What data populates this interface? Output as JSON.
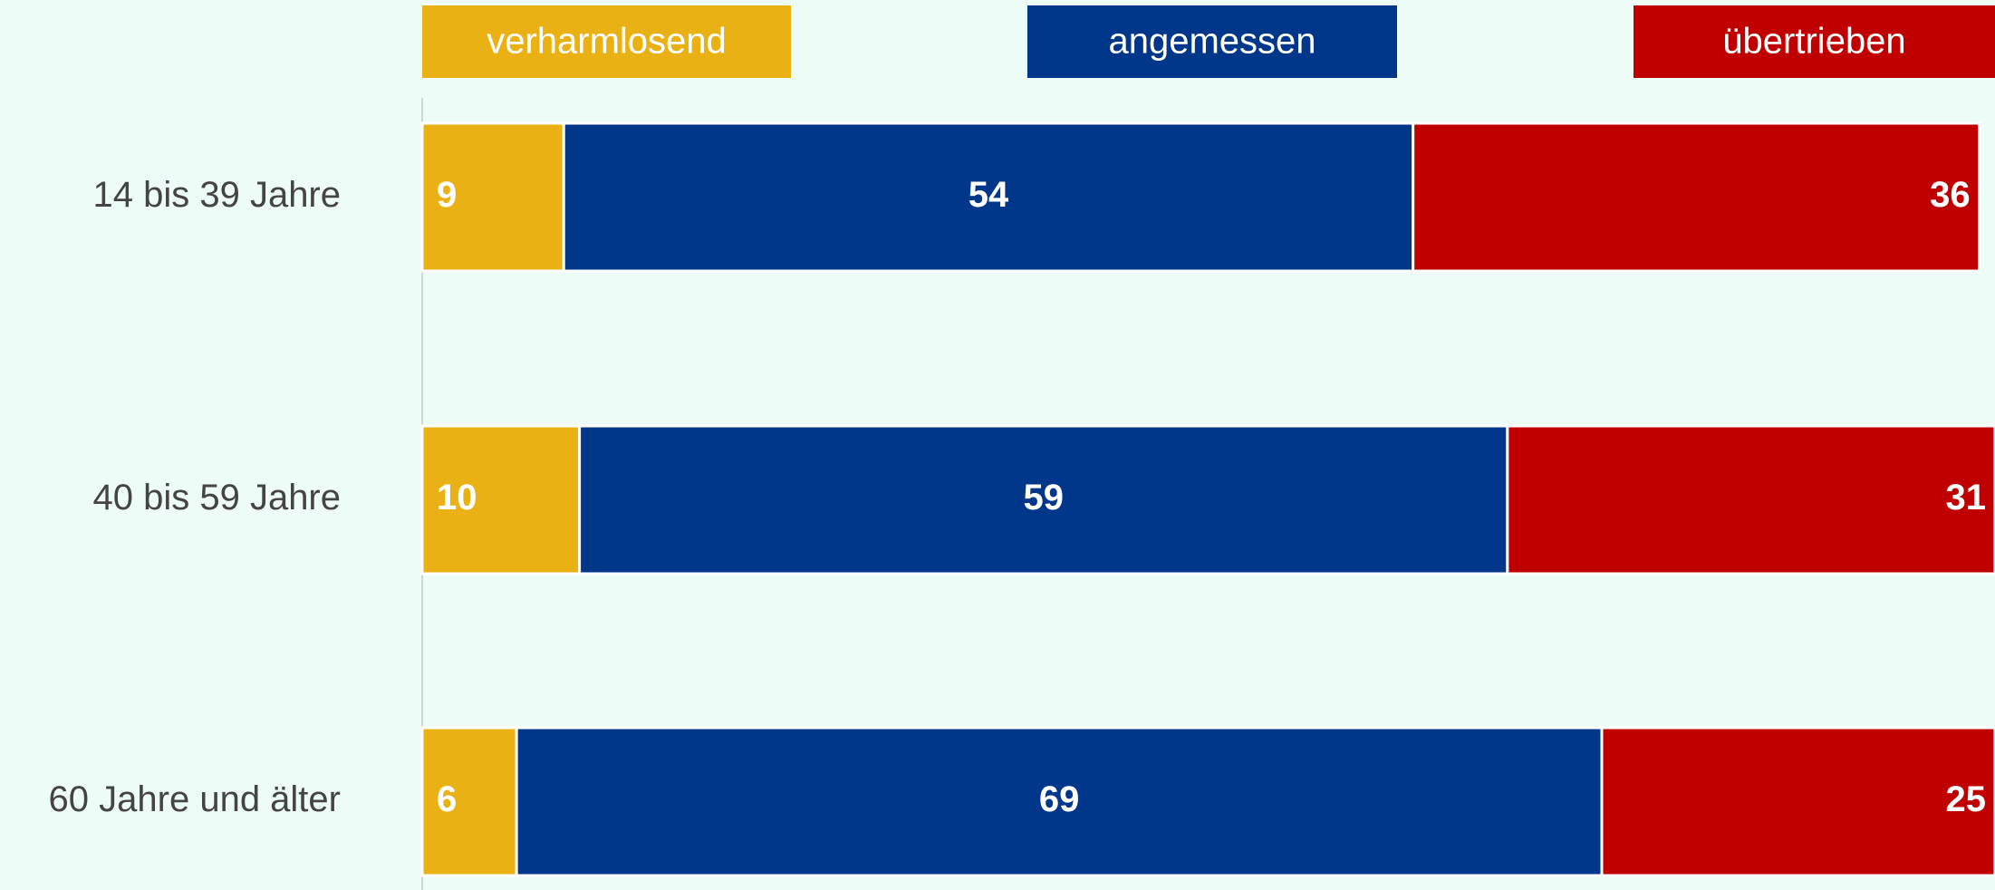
{
  "chart_data": {
    "type": "bar",
    "orientation": "horizontal",
    "stacked": true,
    "categories": [
      "14 bis 39 Jahre",
      "40 bis 59 Jahre",
      "60 Jahre und älter"
    ],
    "series": [
      {
        "name": "verharmlosend",
        "color": "#e9b114",
        "values": [
          9,
          10,
          6
        ]
      },
      {
        "name": "angemessen",
        "color": "#00378a",
        "values": [
          54,
          59,
          69
        ]
      },
      {
        "name": "übertrieben",
        "color": "#c00000",
        "values": [
          36,
          31,
          25
        ]
      }
    ],
    "xlim": [
      0,
      100
    ]
  }
}
